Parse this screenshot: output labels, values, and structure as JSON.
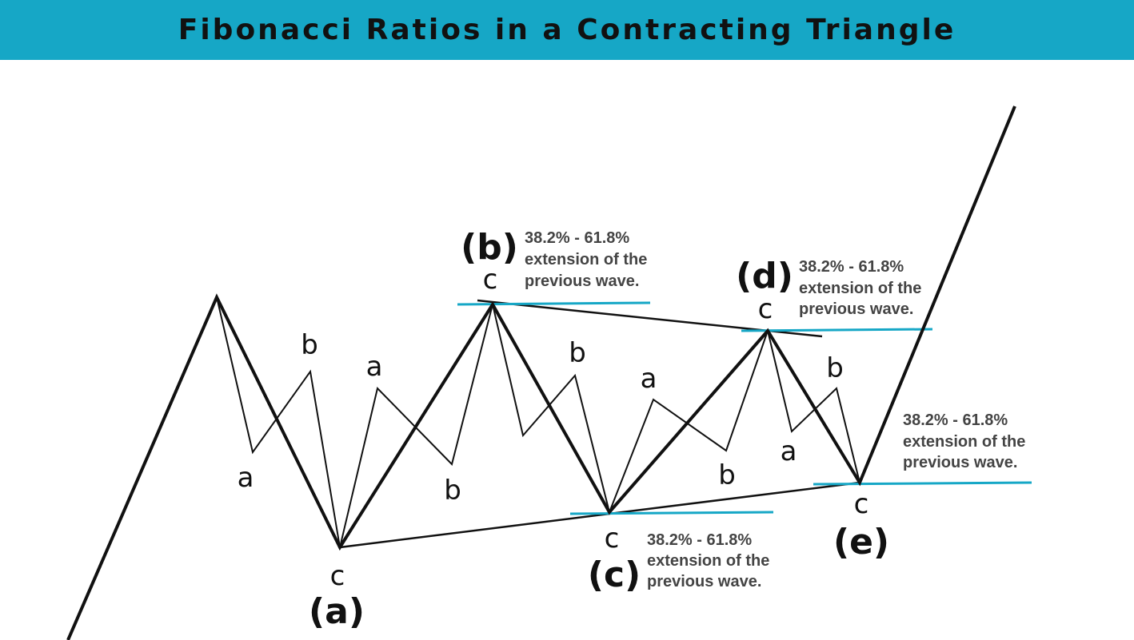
{
  "title": "Fibonacci Ratios in a Contracting Triangle",
  "colors": {
    "banner": "#16a7c6",
    "fib_line": "#16a7c6",
    "ink": "#111111"
  },
  "waves": {
    "a": {
      "label": "(a)",
      "end": "c"
    },
    "b": {
      "label": "(b)",
      "end": "c"
    },
    "c": {
      "label": "(c)",
      "end": "c"
    },
    "d": {
      "label": "(d)",
      "end": "c"
    },
    "e": {
      "label": "(e)",
      "end": "c"
    }
  },
  "subwaves": {
    "a": "a",
    "b": "b"
  },
  "annotation": {
    "line1": "38.2% - 61.8%",
    "line2": "extension of the",
    "line3": "previous wave."
  }
}
